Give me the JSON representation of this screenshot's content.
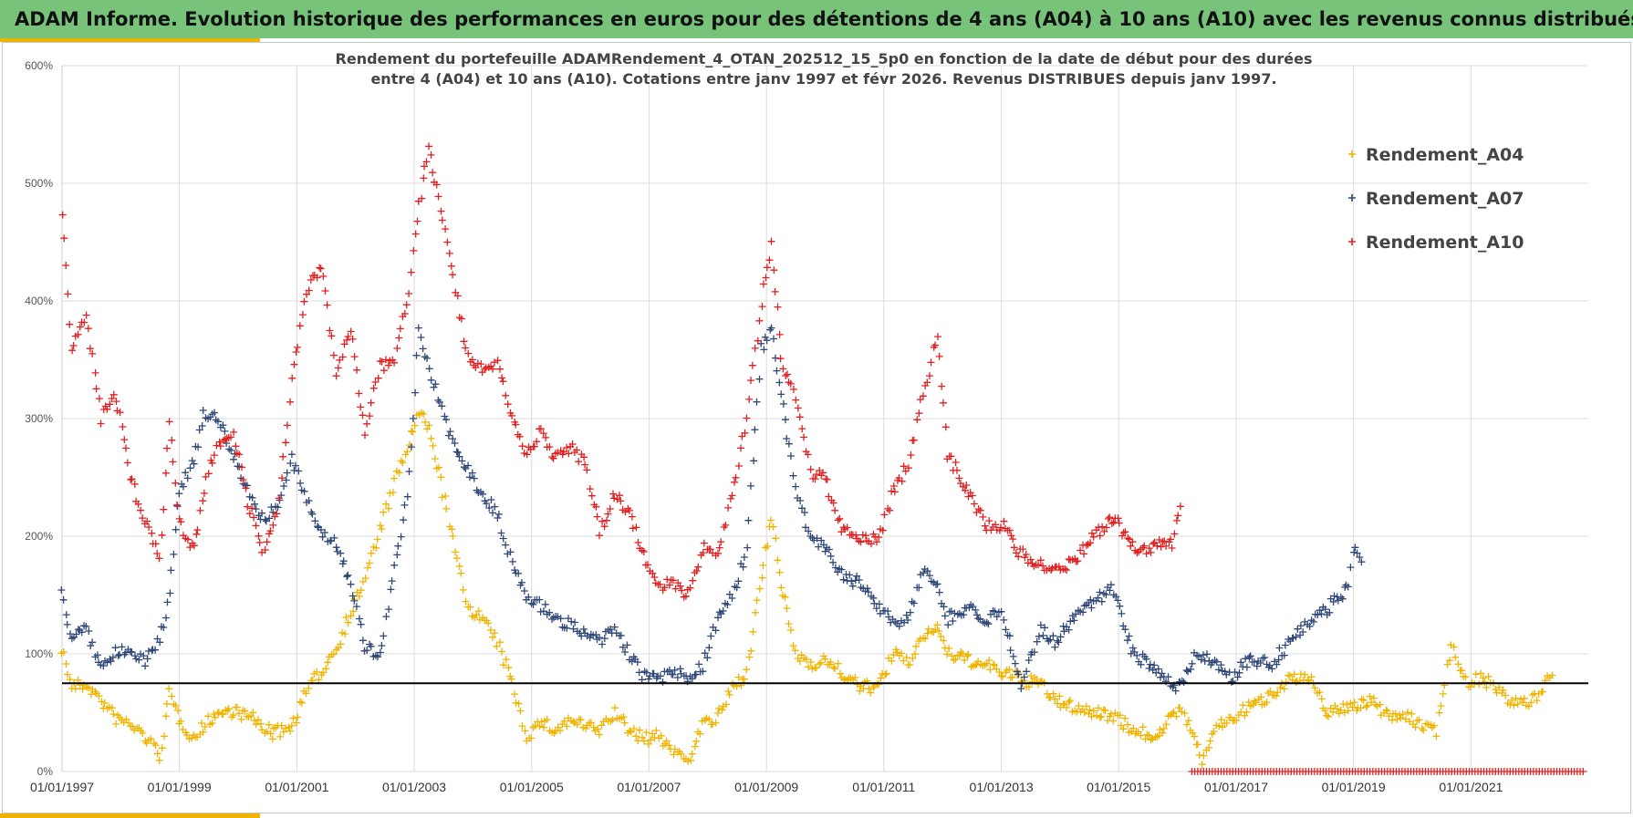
{
  "header": {
    "title": "ADAM Informe. Evolution historique des performances en euros pour des détentions de 4 ans (A04) à 10 ans (A10) avec les revenus connus distribués"
  },
  "chart_data": {
    "type": "scatter",
    "title_lines": [
      "Rendement du portefeuille ADAMRendement_4_OTAN_202512_15_5p0  en fonction de la date de début pour des durées",
      "entre 4 (A04) et 10 ans (A10). Cotations entre janv 1997 et févr 2026. Revenus DISTRIBUES depuis janv 1997."
    ],
    "xlabel": "",
    "ylabel": "",
    "x_range": [
      "1997-01-01",
      "2023-01-01"
    ],
    "ylim": [
      0,
      600
    ],
    "y_ticks": [
      "0%",
      "100%",
      "200%",
      "300%",
      "400%",
      "500%",
      "600%"
    ],
    "x_ticks": [
      "01/01/1997",
      "01/01/1999",
      "01/01/2001",
      "01/01/2003",
      "01/01/2005",
      "01/01/2007",
      "01/01/2009",
      "01/01/2011",
      "01/01/2013",
      "01/01/2015",
      "01/01/2017",
      "01/01/2019",
      "01/01/2021"
    ],
    "grid": true,
    "legend_position": "top-right",
    "reference_line": {
      "y": 75,
      "color": "#000000"
    },
    "series": [
      {
        "name": "Rendement_A04",
        "color": "#f0b400",
        "marker": "+",
        "points": [
          [
            "1997-01-01",
            105
          ],
          [
            "1997-03-01",
            72
          ],
          [
            "1997-06-01",
            74
          ],
          [
            "1997-09-01",
            60
          ],
          [
            "1997-12-01",
            45
          ],
          [
            "1998-03-01",
            40
          ],
          [
            "1998-06-01",
            30
          ],
          [
            "1998-09-01",
            14
          ],
          [
            "1998-11-01",
            65
          ],
          [
            "1999-01-01",
            45
          ],
          [
            "1999-04-01",
            28
          ],
          [
            "1999-08-01",
            48
          ],
          [
            "1999-12-01",
            52
          ],
          [
            "2000-04-01",
            45
          ],
          [
            "2000-08-01",
            32
          ],
          [
            "2000-12-01",
            38
          ],
          [
            "2001-03-01",
            68
          ],
          [
            "2001-06-01",
            85
          ],
          [
            "2001-09-01",
            105
          ],
          [
            "2001-12-01",
            135
          ],
          [
            "2002-03-01",
            165
          ],
          [
            "2002-06-01",
            205
          ],
          [
            "2002-09-01",
            245
          ],
          [
            "2002-12-01",
            280
          ],
          [
            "2003-02-01",
            305
          ],
          [
            "2003-04-01",
            290
          ],
          [
            "2003-06-01",
            255
          ],
          [
            "2003-09-01",
            195
          ],
          [
            "2003-12-01",
            140
          ],
          [
            "2004-03-01",
            130
          ],
          [
            "2004-06-01",
            110
          ],
          [
            "2004-09-01",
            75
          ],
          [
            "2004-12-01",
            30
          ],
          [
            "2005-03-01",
            42
          ],
          [
            "2005-06-01",
            35
          ],
          [
            "2005-09-01",
            44
          ],
          [
            "2005-12-01",
            38
          ],
          [
            "2006-03-01",
            35
          ],
          [
            "2006-06-01",
            50
          ],
          [
            "2006-09-01",
            35
          ],
          [
            "2006-12-01",
            28
          ],
          [
            "2007-03-01",
            30
          ],
          [
            "2007-06-01",
            18
          ],
          [
            "2007-09-01",
            10
          ],
          [
            "2007-12-01",
            40
          ],
          [
            "2008-03-01",
            45
          ],
          [
            "2008-06-01",
            70
          ],
          [
            "2008-09-01",
            85
          ],
          [
            "2008-12-01",
            165
          ],
          [
            "2009-02-01",
            215
          ],
          [
            "2009-04-01",
            160
          ],
          [
            "2009-07-01",
            100
          ],
          [
            "2009-10-01",
            92
          ],
          [
            "2010-01-01",
            95
          ],
          [
            "2010-04-01",
            85
          ],
          [
            "2010-08-01",
            72
          ],
          [
            "2010-12-01",
            72
          ],
          [
            "2011-03-01",
            100
          ],
          [
            "2011-06-01",
            92
          ],
          [
            "2011-09-01",
            115
          ],
          [
            "2011-12-01",
            125
          ],
          [
            "2012-02-01",
            100
          ],
          [
            "2012-06-01",
            95
          ],
          [
            "2012-10-01",
            90
          ],
          [
            "2013-01-01",
            85
          ],
          [
            "2013-05-01",
            78
          ],
          [
            "2013-09-01",
            75
          ],
          [
            "2013-12-01",
            60
          ],
          [
            "2014-04-01",
            55
          ],
          [
            "2014-08-01",
            50
          ],
          [
            "2014-12-01",
            48
          ],
          [
            "2015-04-01",
            35
          ],
          [
            "2015-08-01",
            30
          ],
          [
            "2015-12-01",
            45
          ],
          [
            "2016-02-01",
            55
          ],
          [
            "2016-04-01",
            30
          ],
          [
            "2016-06-01",
            10
          ],
          [
            "2016-09-01",
            38
          ],
          [
            "2016-12-01",
            45
          ],
          [
            "2017-04-01",
            55
          ],
          [
            "2017-08-01",
            65
          ],
          [
            "2017-12-01",
            80
          ],
          [
            "2018-04-01",
            78
          ],
          [
            "2018-08-01",
            50
          ],
          [
            "2018-12-01",
            55
          ],
          [
            "2019-04-01",
            60
          ],
          [
            "2019-08-01",
            50
          ],
          [
            "2019-12-01",
            45
          ],
          [
            "2020-03-01",
            40
          ],
          [
            "2020-06-01",
            35
          ],
          [
            "2020-09-01",
            110
          ],
          [
            "2020-12-01",
            75
          ],
          [
            "2021-03-01",
            80
          ],
          [
            "2021-06-01",
            72
          ],
          [
            "2021-09-01",
            58
          ],
          [
            "2021-12-01",
            58
          ],
          [
            "2022-03-01",
            65
          ],
          [
            "2022-06-01",
            88
          ]
        ]
      },
      {
        "name": "Rendement_A07",
        "color": "#2f4878",
        "marker": "+",
        "points": [
          [
            "1997-01-01",
            150
          ],
          [
            "1997-03-01",
            115
          ],
          [
            "1997-06-01",
            120
          ],
          [
            "1997-09-01",
            88
          ],
          [
            "1997-12-01",
            100
          ],
          [
            "1998-03-01",
            105
          ],
          [
            "1998-06-01",
            95
          ],
          [
            "1998-09-01",
            110
          ],
          [
            "1998-11-01",
            150
          ],
          [
            "1999-01-01",
            240
          ],
          [
            "1999-04-01",
            265
          ],
          [
            "1999-06-01",
            305
          ],
          [
            "1999-09-01",
            300
          ],
          [
            "1999-12-01",
            270
          ],
          [
            "2000-03-01",
            240
          ],
          [
            "2000-06-01",
            215
          ],
          [
            "2000-09-01",
            225
          ],
          [
            "2000-12-01",
            265
          ],
          [
            "2001-03-01",
            230
          ],
          [
            "2001-06-01",
            205
          ],
          [
            "2001-09-01",
            195
          ],
          [
            "2001-12-01",
            160
          ],
          [
            "2002-03-01",
            105
          ],
          [
            "2002-06-01",
            100
          ],
          [
            "2002-09-01",
            170
          ],
          [
            "2002-12-01",
            250
          ],
          [
            "2003-02-01",
            375
          ],
          [
            "2003-05-01",
            330
          ],
          [
            "2003-08-01",
            290
          ],
          [
            "2003-12-01",
            255
          ],
          [
            "2004-03-01",
            235
          ],
          [
            "2004-06-01",
            220
          ],
          [
            "2004-09-01",
            175
          ],
          [
            "2004-12-01",
            150
          ],
          [
            "2005-03-01",
            140
          ],
          [
            "2005-06-01",
            130
          ],
          [
            "2005-09-01",
            125
          ],
          [
            "2005-12-01",
            115
          ],
          [
            "2006-03-01",
            110
          ],
          [
            "2006-06-01",
            120
          ],
          [
            "2006-09-01",
            100
          ],
          [
            "2006-12-01",
            80
          ],
          [
            "2007-03-01",
            78
          ],
          [
            "2007-06-01",
            85
          ],
          [
            "2007-09-01",
            80
          ],
          [
            "2007-12-01",
            90
          ],
          [
            "2008-03-01",
            130
          ],
          [
            "2008-06-01",
            150
          ],
          [
            "2008-09-01",
            190
          ],
          [
            "2008-12-01",
            360
          ],
          [
            "2009-02-01",
            375
          ],
          [
            "2009-04-01",
            320
          ],
          [
            "2009-07-01",
            240
          ],
          [
            "2009-10-01",
            200
          ],
          [
            "2010-01-01",
            190
          ],
          [
            "2010-04-01",
            170
          ],
          [
            "2010-08-01",
            160
          ],
          [
            "2010-12-01",
            140
          ],
          [
            "2011-03-01",
            128
          ],
          [
            "2011-06-01",
            130
          ],
          [
            "2011-09-01",
            170
          ],
          [
            "2011-12-01",
            160
          ],
          [
            "2012-02-01",
            130
          ],
          [
            "2012-06-01",
            140
          ],
          [
            "2012-10-01",
            130
          ],
          [
            "2013-01-01",
            135
          ],
          [
            "2013-05-01",
            75
          ],
          [
            "2013-09-01",
            120
          ],
          [
            "2013-12-01",
            110
          ],
          [
            "2014-04-01",
            130
          ],
          [
            "2014-08-01",
            145
          ],
          [
            "2014-12-01",
            155
          ],
          [
            "2015-04-01",
            100
          ],
          [
            "2015-08-01",
            90
          ],
          [
            "2015-12-01",
            72
          ],
          [
            "2016-02-01",
            75
          ],
          [
            "2016-05-01",
            100
          ],
          [
            "2016-09-01",
            90
          ],
          [
            "2016-12-01",
            80
          ],
          [
            "2017-04-01",
            95
          ],
          [
            "2017-08-01",
            90
          ],
          [
            "2017-12-01",
            110
          ],
          [
            "2018-04-01",
            125
          ],
          [
            "2018-08-01",
            140
          ],
          [
            "2018-12-01",
            155
          ],
          [
            "2019-01-01",
            190
          ],
          [
            "2019-03-01",
            175
          ]
        ]
      },
      {
        "name": "Rendement_A10",
        "color": "#e02020",
        "marker": "+",
        "points": [
          [
            "1997-01-01",
            470
          ],
          [
            "1997-03-01",
            360
          ],
          [
            "1997-06-01",
            390
          ],
          [
            "1997-09-01",
            300
          ],
          [
            "1997-12-01",
            320
          ],
          [
            "1998-03-01",
            250
          ],
          [
            "1998-06-01",
            215
          ],
          [
            "1998-09-01",
            180
          ],
          [
            "1998-11-01",
            300
          ],
          [
            "1999-01-01",
            210
          ],
          [
            "1999-04-01",
            190
          ],
          [
            "1999-07-01",
            255
          ],
          [
            "1999-10-01",
            285
          ],
          [
            "1999-12-01",
            290
          ],
          [
            "2000-03-01",
            230
          ],
          [
            "2000-06-01",
            190
          ],
          [
            "2000-09-01",
            215
          ],
          [
            "2000-12-01",
            330
          ],
          [
            "2001-03-01",
            410
          ],
          [
            "2001-06-01",
            430
          ],
          [
            "2001-09-01",
            340
          ],
          [
            "2001-12-01",
            375
          ],
          [
            "2002-03-01",
            290
          ],
          [
            "2002-06-01",
            345
          ],
          [
            "2002-09-01",
            345
          ],
          [
            "2002-12-01",
            410
          ],
          [
            "2003-02-01",
            480
          ],
          [
            "2003-04-01",
            530
          ],
          [
            "2003-06-01",
            490
          ],
          [
            "2003-09-01",
            420
          ],
          [
            "2003-12-01",
            350
          ],
          [
            "2004-03-01",
            340
          ],
          [
            "2004-06-01",
            350
          ],
          [
            "2004-09-01",
            300
          ],
          [
            "2004-12-01",
            270
          ],
          [
            "2005-03-01",
            290
          ],
          [
            "2005-06-01",
            265
          ],
          [
            "2005-09-01",
            275
          ],
          [
            "2005-12-01",
            260
          ],
          [
            "2006-03-01",
            205
          ],
          [
            "2006-06-01",
            235
          ],
          [
            "2006-09-01",
            220
          ],
          [
            "2006-12-01",
            185
          ],
          [
            "2007-03-01",
            155
          ],
          [
            "2007-06-01",
            160
          ],
          [
            "2007-09-01",
            150
          ],
          [
            "2007-12-01",
            190
          ],
          [
            "2008-03-01",
            185
          ],
          [
            "2008-06-01",
            235
          ],
          [
            "2008-09-01",
            300
          ],
          [
            "2008-12-01",
            400
          ],
          [
            "2009-02-01",
            450
          ],
          [
            "2009-04-01",
            350
          ],
          [
            "2009-07-01",
            320
          ],
          [
            "2009-10-01",
            255
          ],
          [
            "2010-01-01",
            250
          ],
          [
            "2010-04-01",
            210
          ],
          [
            "2010-08-01",
            200
          ],
          [
            "2010-12-01",
            195
          ],
          [
            "2011-03-01",
            240
          ],
          [
            "2011-06-01",
            260
          ],
          [
            "2011-09-01",
            320
          ],
          [
            "2011-12-01",
            370
          ],
          [
            "2012-02-01",
            270
          ],
          [
            "2012-06-01",
            240
          ],
          [
            "2012-10-01",
            210
          ],
          [
            "2013-01-01",
            210
          ],
          [
            "2013-05-01",
            185
          ],
          [
            "2013-09-01",
            175
          ],
          [
            "2013-12-01",
            170
          ],
          [
            "2014-04-01",
            180
          ],
          [
            "2014-08-01",
            200
          ],
          [
            "2014-12-01",
            215
          ],
          [
            "2015-04-01",
            190
          ],
          [
            "2015-08-01",
            190
          ],
          [
            "2015-12-01",
            195
          ],
          [
            "2016-02-01",
            235
          ]
        ]
      }
    ],
    "a10_end_band": {
      "from": "2016-04-01",
      "to": "2022-12-01",
      "y": 0
    }
  }
}
